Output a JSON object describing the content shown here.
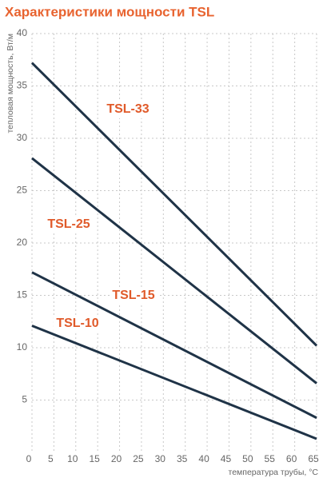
{
  "chart_data": {
    "type": "line",
    "title": "Характеристики мощности TSL",
    "y_label": "тепловая мощность, Вт/м",
    "x_label": "температура трубы, °C",
    "x": [
      0,
      65
    ],
    "series": [
      {
        "name": "TSL-33",
        "color": "#1f3347",
        "values": [
          37.2,
          10.2
        ]
      },
      {
        "name": "TSL-25",
        "color": "#1f3347",
        "values": [
          28.1,
          6.6
        ]
      },
      {
        "name": "TSL-15",
        "color": "#1f3347",
        "values": [
          17.2,
          3.3
        ]
      },
      {
        "name": "TSL-10",
        "color": "#1f3347",
        "values": [
          12.1,
          1.3
        ]
      }
    ],
    "label_color": "#e05a2a",
    "xlim": [
      0,
      65
    ],
    "xticks": [
      0,
      5,
      10,
      15,
      20,
      25,
      30,
      35,
      40,
      45,
      50,
      55,
      60,
      65
    ],
    "ylim": [
      0,
      40
    ],
    "yticks": [
      5,
      10,
      15,
      20,
      25,
      30,
      35,
      40
    ],
    "grid": true
  }
}
